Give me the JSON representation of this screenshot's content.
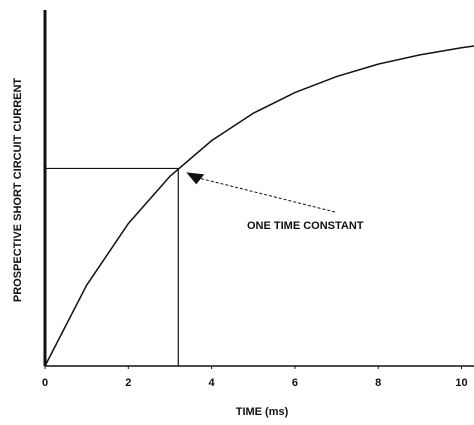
{
  "chart_data": {
    "type": "line",
    "xlabel": "TIME (ms)",
    "ylabel": "PROSPECTIVE SHORT CIRCUIT CURRENT",
    "x": [
      0,
      1,
      2,
      3,
      4,
      5,
      6,
      7,
      8,
      9,
      10,
      10.3
    ],
    "series": [
      {
        "color": "#111111",
        "values": [
          0,
          0.227,
          0.4,
          0.533,
          0.633,
          0.71,
          0.768,
          0.813,
          0.848,
          0.874,
          0.894,
          0.899
        ]
      }
    ],
    "xlim": [
      0,
      10.3
    ],
    "xticks": [
      0,
      2,
      4,
      6,
      8,
      10
    ],
    "ylim": [
      0,
      1
    ],
    "annotation": {
      "text": "ONE TIME CONSTANT",
      "x": 3.2,
      "y": 0.555
    }
  }
}
